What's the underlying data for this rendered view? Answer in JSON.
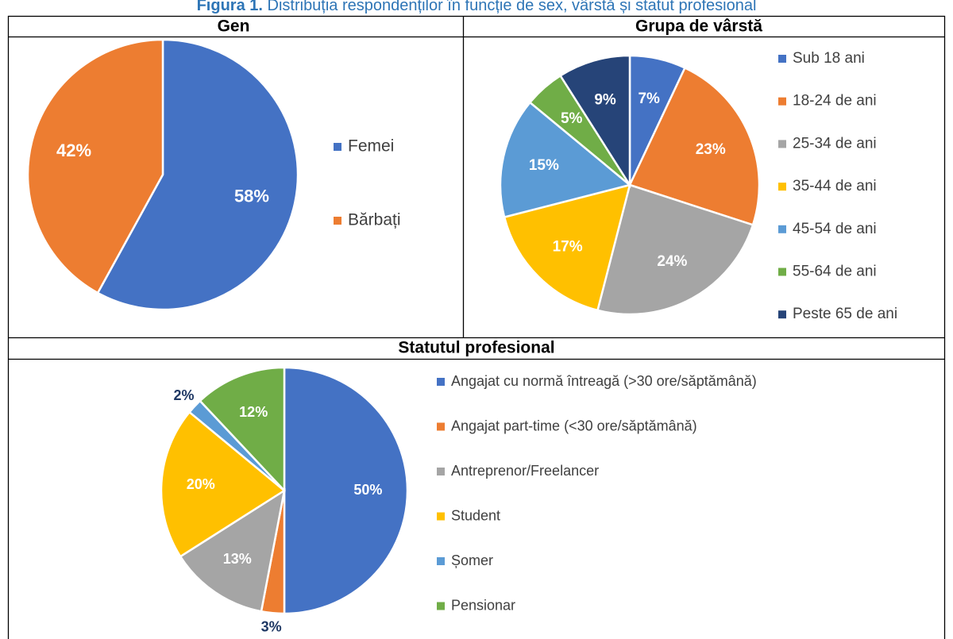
{
  "caption": {
    "label": "Figura 1.",
    "text": "Distribuția respondenților în funcție de sex, vârstă și statut profesional"
  },
  "chart_data": [
    {
      "type": "pie",
      "title": "Gen",
      "categories": [
        "Femei",
        "Bărbați"
      ],
      "values": [
        58,
        42
      ],
      "value_labels": [
        "58%",
        "42%"
      ],
      "colors": [
        "#4472c4",
        "#ed7d31"
      ]
    },
    {
      "type": "pie",
      "title": "Grupa de vârstă",
      "categories": [
        "Sub 18 ani",
        "18-24 de ani",
        "25-34 de ani",
        "35-44 de ani",
        "45-54 de ani",
        "55-64 de ani",
        "Peste 65 de ani"
      ],
      "values": [
        7,
        23,
        24,
        17,
        15,
        5,
        9
      ],
      "value_labels": [
        "7%",
        "23%",
        "24%",
        "17%",
        "15%",
        "5%",
        "9%"
      ],
      "colors": [
        "#4472c4",
        "#ed7d31",
        "#a5a5a5",
        "#ffc000",
        "#5b9bd5",
        "#70ad47",
        "#264478"
      ]
    },
    {
      "type": "pie",
      "title": "Statutul profesional",
      "categories": [
        "Angajat cu normă întreagă (>30 ore/săptămână)",
        "Angajat part-time (<30 ore/săptămână)",
        "Antreprenor/Freelancer",
        "Student",
        "Șomer",
        "Pensionar"
      ],
      "values": [
        50,
        3,
        13,
        20,
        2,
        12
      ],
      "value_labels": [
        "50%",
        "3%",
        "13%",
        "20%",
        "2%",
        "12%"
      ],
      "colors": [
        "#4472c4",
        "#ed7d31",
        "#a5a5a5",
        "#ffc000",
        "#5b9bd5",
        "#70ad47"
      ]
    }
  ]
}
